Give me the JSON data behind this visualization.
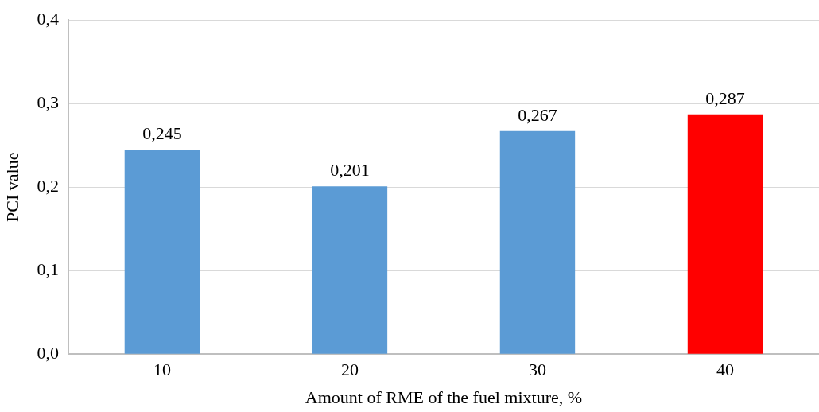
{
  "chart_data": {
    "type": "bar",
    "xlabel": "Amount of RME of the fuel mixture, %",
    "ylabel": "PCI value",
    "categories": [
      "10",
      "20",
      "30",
      "40"
    ],
    "values": [
      0.245,
      0.201,
      0.267,
      0.287
    ],
    "colors": [
      "#5b9bd5",
      "#5b9bd5",
      "#5b9bd5",
      "#ff0000"
    ],
    "value_labels": [
      "0,245",
      "0,201",
      "0,267",
      "0,287"
    ],
    "ylim": [
      0,
      0.4
    ],
    "yticks": [
      {
        "value": 0,
        "label": "0,0"
      },
      {
        "value": 0.1,
        "label": "0,1"
      },
      {
        "value": 0.2,
        "label": "0,2"
      },
      {
        "value": 0.3,
        "label": "0,3"
      },
      {
        "value": 0.4,
        "label": "0,4"
      }
    ],
    "grid": "y",
    "legend": false
  }
}
